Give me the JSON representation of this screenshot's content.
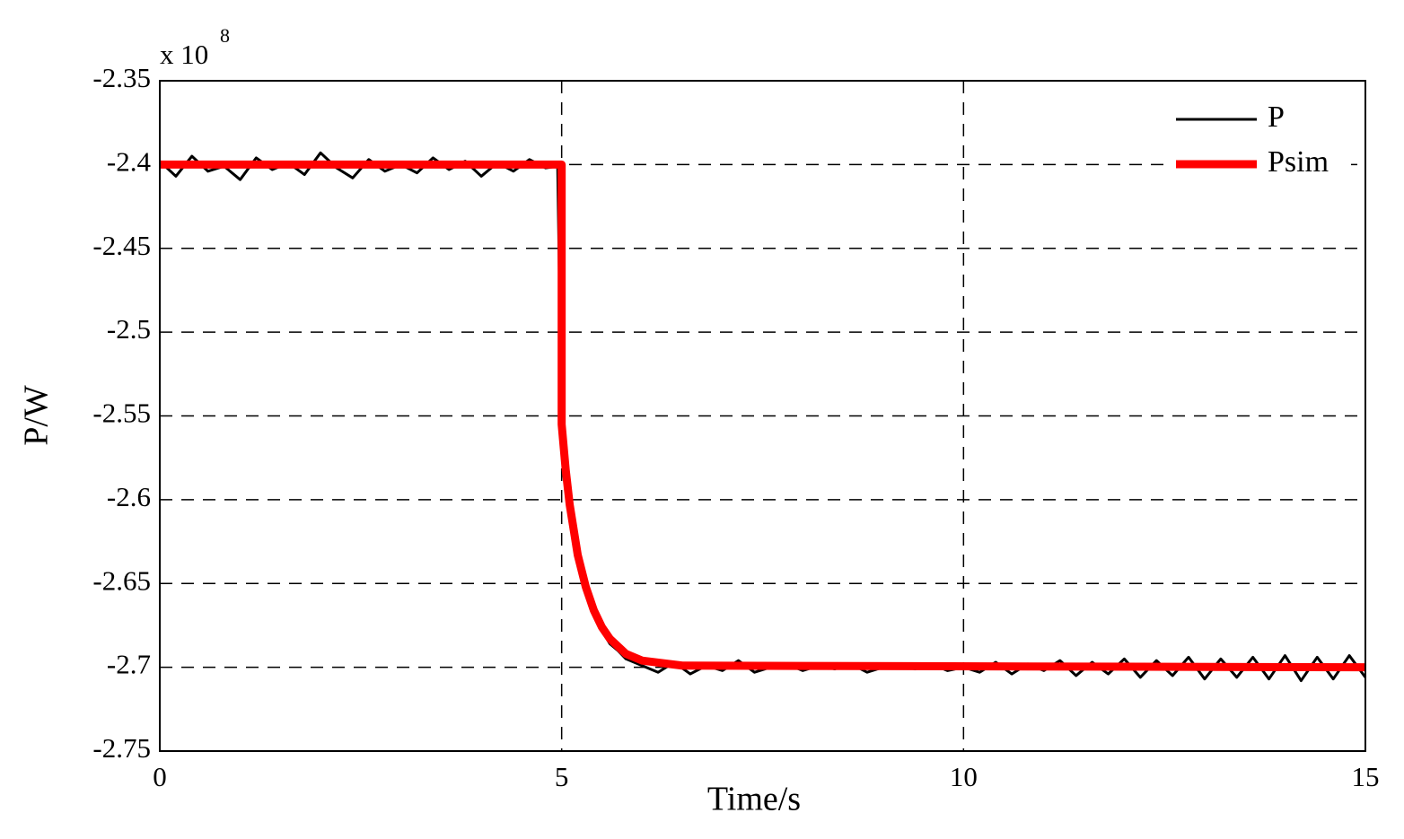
{
  "chart_data": {
    "type": "line",
    "y_multiplier": {
      "base": "x 10",
      "exponent": "8"
    },
    "xlabel": "Time/s",
    "ylabel": "P/W",
    "xlim": [
      0,
      15
    ],
    "xticks": [
      0,
      5,
      10,
      15
    ],
    "ylim": [
      -2.75,
      -2.35
    ],
    "yticks": [
      -2.75,
      -2.7,
      -2.65,
      -2.6,
      -2.55,
      -2.5,
      -2.45,
      -2.4,
      -2.35
    ],
    "grid": true,
    "legend": "upper right",
    "series": [
      {
        "name": "P",
        "color": "#000000",
        "x": [
          0,
          0.2,
          0.4,
          0.6,
          0.8,
          1.0,
          1.2,
          1.4,
          1.6,
          1.8,
          2.0,
          2.2,
          2.4,
          2.6,
          2.8,
          3.0,
          3.2,
          3.4,
          3.6,
          3.8,
          4.0,
          4.2,
          4.4,
          4.6,
          4.8,
          4.95,
          5.0,
          5.02,
          5.05,
          5.1,
          5.15,
          5.2,
          5.3,
          5.4,
          5.5,
          5.6,
          5.7,
          5.8,
          6.0,
          6.2,
          6.4,
          6.6,
          6.8,
          7.0,
          7.2,
          7.4,
          7.6,
          7.8,
          8.0,
          8.2,
          8.4,
          8.6,
          8.8,
          9.0,
          9.2,
          9.4,
          9.6,
          9.8,
          10.0,
          10.2,
          10.4,
          10.6,
          10.8,
          11.0,
          11.2,
          11.4,
          11.6,
          11.8,
          12.0,
          12.2,
          12.4,
          12.6,
          12.8,
          13.0,
          13.2,
          13.4,
          13.6,
          13.8,
          14.0,
          14.2,
          14.4,
          14.6,
          14.8,
          15.0
        ],
        "values": [
          -2.398,
          -2.407,
          -2.395,
          -2.404,
          -2.401,
          -2.409,
          -2.396,
          -2.403,
          -2.399,
          -2.406,
          -2.393,
          -2.402,
          -2.408,
          -2.397,
          -2.404,
          -2.4,
          -2.405,
          -2.396,
          -2.403,
          -2.398,
          -2.407,
          -2.399,
          -2.404,
          -2.397,
          -2.402,
          -2.401,
          -2.556,
          -2.565,
          -2.585,
          -2.603,
          -2.618,
          -2.63,
          -2.651,
          -2.666,
          -2.678,
          -2.686,
          -2.69,
          -2.695,
          -2.699,
          -2.703,
          -2.697,
          -2.704,
          -2.699,
          -2.702,
          -2.696,
          -2.703,
          -2.7,
          -2.698,
          -2.702,
          -2.699,
          -2.701,
          -2.698,
          -2.703,
          -2.7,
          -2.699,
          -2.701,
          -2.698,
          -2.702,
          -2.7,
          -2.703,
          -2.697,
          -2.704,
          -2.698,
          -2.702,
          -2.696,
          -2.705,
          -2.697,
          -2.704,
          -2.695,
          -2.706,
          -2.696,
          -2.705,
          -2.694,
          -2.707,
          -2.695,
          -2.706,
          -2.694,
          -2.707,
          -2.693,
          -2.708,
          -2.694,
          -2.707,
          -2.693,
          -2.706
        ]
      },
      {
        "name": "Psim",
        "color": "#ff0000",
        "x": [
          0,
          5,
          5,
          5.05,
          5.1,
          5.2,
          5.3,
          5.4,
          5.5,
          5.6,
          5.8,
          6.0,
          6.5,
          15
        ],
        "values": [
          -2.4,
          -2.4,
          -2.555,
          -2.582,
          -2.603,
          -2.633,
          -2.652,
          -2.666,
          -2.676,
          -2.683,
          -2.692,
          -2.696,
          -2.699,
          -2.7
        ]
      }
    ]
  }
}
